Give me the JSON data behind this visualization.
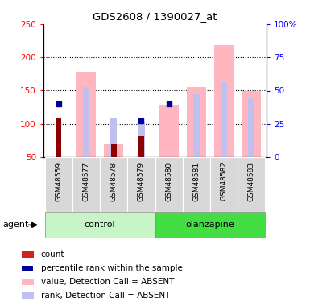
{
  "title": "GDS2608 / 1390027_at",
  "samples": [
    "GSM48559",
    "GSM48577",
    "GSM48578",
    "GSM48579",
    "GSM48580",
    "GSM48581",
    "GSM48582",
    "GSM48583"
  ],
  "value_absent": [
    null,
    178,
    70,
    null,
    127,
    155,
    218,
    150
  ],
  "rank_absent": [
    null,
    155,
    108,
    103,
    null,
    144,
    163,
    138
  ],
  "count_values": [
    110,
    null,
    70,
    82,
    null,
    null,
    null,
    null
  ],
  "percentile_rank": [
    130,
    null,
    null,
    104,
    130,
    null,
    null,
    null
  ],
  "ylim_left": [
    50,
    250
  ],
  "ylim_right": [
    0,
    100
  ],
  "yticks_left": [
    50,
    100,
    150,
    200,
    250
  ],
  "yticks_right": [
    0,
    25,
    50,
    75,
    100
  ],
  "yticklabels_right": [
    "0",
    "25",
    "50",
    "75",
    "100%"
  ],
  "grid_lines": [
    100,
    150,
    200
  ],
  "color_count": "#8B0000",
  "color_percentile": "#000099",
  "color_value_absent": "#FFB6C1",
  "color_rank_absent": "#c0c0f0",
  "agent_label": "agent",
  "control_light": "#c8f5c8",
  "olanzapine_color": "#44dd44",
  "legend": [
    {
      "label": "count",
      "color": "#cc2222"
    },
    {
      "label": "percentile rank within the sample",
      "color": "#000099"
    },
    {
      "label": "value, Detection Call = ABSENT",
      "color": "#FFB6C1"
    },
    {
      "label": "rank, Detection Call = ABSENT",
      "color": "#c0c0f0"
    }
  ]
}
